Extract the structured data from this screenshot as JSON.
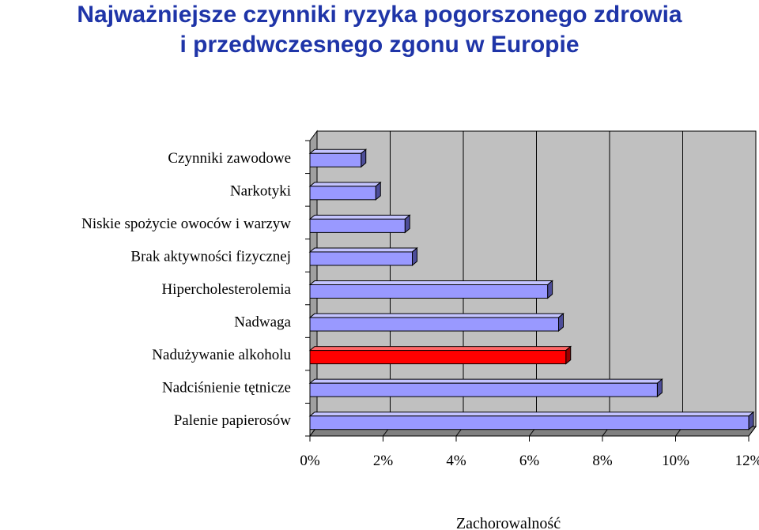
{
  "title_line1": "Najważniejsze czynniki ryzyka pogorszonego zdrowia",
  "title_line2": "i przedwczesnego zgonu w Europie",
  "chart_data": {
    "type": "bar",
    "orientation": "horizontal",
    "categories": [
      "Czynniki zawodowe",
      "Narkotyki",
      "Niskie spożycie owoców i warzyw",
      "Brak aktywności fizycznej",
      "Hipercholesterolemia",
      "Nadwaga",
      "Nadużywanie alkoholu",
      "Nadciśnienie tętnicze",
      "Palenie papierosów"
    ],
    "values": [
      1.4,
      1.8,
      2.6,
      2.8,
      6.5,
      6.8,
      7.0,
      9.5,
      12.0
    ],
    "highlight_index": 6,
    "xlabel": "Zachorowalność",
    "ylabel": "",
    "xlim": [
      0,
      12
    ],
    "xticks": [
      "0%",
      "2%",
      "4%",
      "6%",
      "8%",
      "10%",
      "12%"
    ],
    "grid": true,
    "colors": {
      "bar": "#9999ff",
      "bar_highlight": "#ff0000",
      "plot_bg": "#c0c0c0",
      "title": "#1f35a8"
    }
  }
}
